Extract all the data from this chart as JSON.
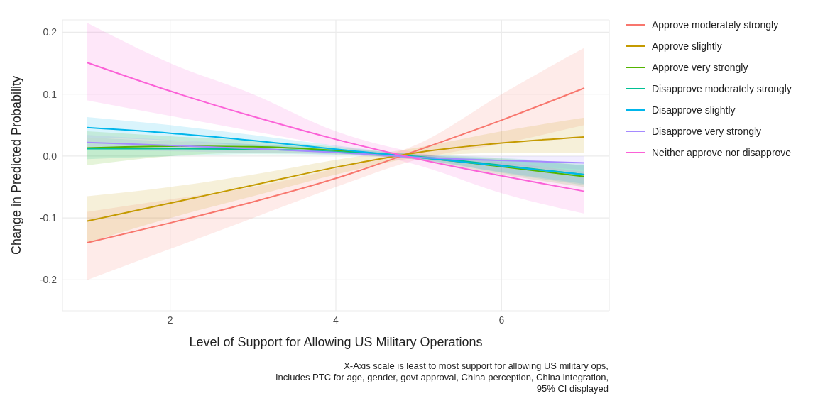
{
  "chart_data": {
    "type": "line",
    "xlabel": "Level of Support for Allowing US Military Operations",
    "ylabel": "Change in Predicted Probability",
    "x": [
      1,
      2,
      3,
      4,
      5,
      6,
      7
    ],
    "xlim": [
      0.7,
      7.3
    ],
    "xticks": [
      2,
      4,
      6
    ],
    "ylim": [
      -0.25,
      0.22
    ],
    "yticks": [
      -0.2,
      -0.1,
      {
        "value": 0,
        "label": "0.0"
      },
      0.1,
      0.2
    ],
    "grid": true,
    "legend": "top right",
    "series": [
      {
        "name": "Approve moderately strongly",
        "color": "#f8766d",
        "values": [
          -0.14,
          -0.108,
          -0.074,
          -0.036,
          0.01,
          0.058,
          0.11
        ],
        "lower": [
          -0.2,
          -0.15,
          -0.1,
          -0.05,
          -0.005,
          0.02,
          0.05
        ],
        "upper": [
          -0.09,
          -0.07,
          -0.05,
          -0.02,
          0.02,
          0.1,
          0.175
        ]
      },
      {
        "name": "Approve slightly",
        "color": "#c49a00",
        "values": [
          -0.105,
          -0.076,
          -0.047,
          -0.018,
          0.006,
          0.021,
          0.031
        ],
        "lower": [
          -0.14,
          -0.1,
          -0.065,
          -0.03,
          -0.002,
          0.005,
          0.005
        ],
        "upper": [
          -0.065,
          -0.05,
          -0.03,
          -0.006,
          0.014,
          0.04,
          0.062
        ]
      },
      {
        "name": "Approve very strongly",
        "color": "#53b400",
        "values": [
          0.013,
          0.016,
          0.015,
          0.009,
          -0.002,
          -0.017,
          -0.033
        ],
        "lower": [
          -0.015,
          0,
          0.005,
          0.003,
          -0.006,
          -0.03,
          -0.05
        ],
        "upper": [
          0.04,
          0.032,
          0.025,
          0.015,
          0.002,
          -0.004,
          -0.015
        ]
      },
      {
        "name": "Disapprove moderately strongly",
        "color": "#00c094",
        "values": [
          0.012,
          0.012,
          0.011,
          0.007,
          -0.001,
          -0.015,
          -0.03
        ],
        "lower": [
          -0.005,
          0,
          0.003,
          0.002,
          -0.005,
          -0.027,
          -0.047
        ],
        "upper": [
          0.03,
          0.024,
          0.019,
          0.012,
          0.003,
          -0.003,
          -0.013
        ]
      },
      {
        "name": "Disapprove slightly",
        "color": "#00b6eb",
        "values": [
          0.046,
          0.037,
          0.025,
          0.011,
          -0.002,
          -0.016,
          -0.03
        ],
        "lower": [
          0.03,
          0.025,
          0.016,
          0.005,
          -0.006,
          -0.026,
          -0.045
        ],
        "upper": [
          0.063,
          0.05,
          0.034,
          0.017,
          0.002,
          -0.006,
          -0.015
        ]
      },
      {
        "name": "Disapprove very strongly",
        "color": "#a58aff",
        "values": [
          0.022,
          0.017,
          0.012,
          0.006,
          -0.002,
          -0.007,
          -0.011
        ],
        "lower": [
          0.01,
          0.008,
          0.005,
          0.002,
          -0.005,
          -0.014,
          -0.022
        ],
        "upper": [
          0.034,
          0.026,
          0.019,
          0.01,
          0.001,
          0,
          0
        ]
      },
      {
        "name": "Neither approve nor disapprove",
        "color": "#fb61d7",
        "values": [
          0.151,
          0.105,
          0.064,
          0.027,
          -0.005,
          -0.032,
          -0.057
        ],
        "lower": [
          0.09,
          0.065,
          0.04,
          0.015,
          -0.015,
          -0.06,
          -0.093
        ],
        "upper": [
          0.215,
          0.15,
          0.1,
          0.04,
          0.005,
          -0.01,
          -0.025
        ]
      }
    ],
    "annotations": [
      "X-Axis scale is least to most support for allowing US military ops,",
      "Includes PTC for age, gender, govt approval, China perception, China integration,",
      "95% CI displayed"
    ]
  }
}
